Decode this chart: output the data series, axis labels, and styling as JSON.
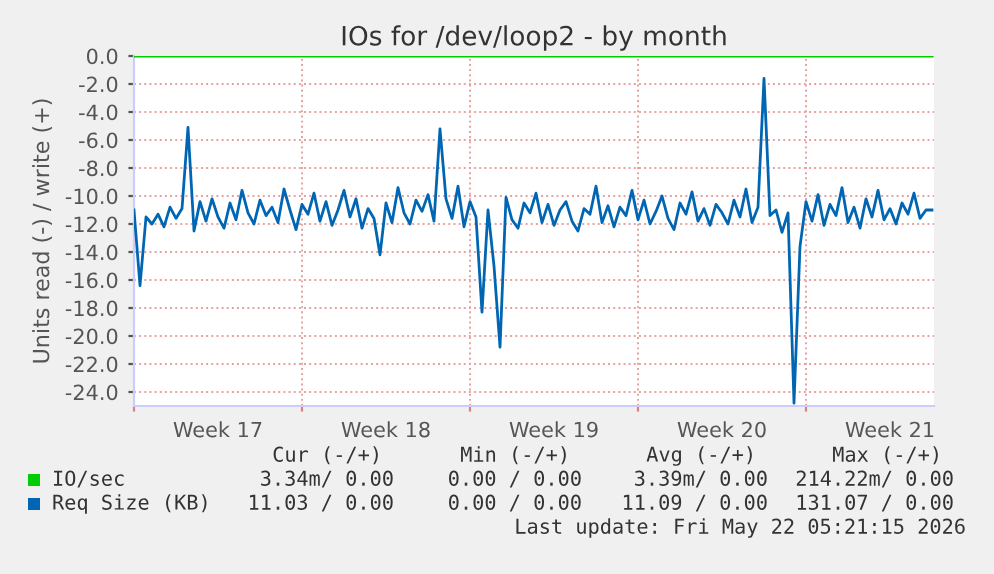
{
  "chart_data": {
    "type": "line",
    "title": "IOs for /dev/loop2 - by month",
    "ylabel": "Units read (-) / write (+)",
    "xlim": [
      "2026-04-20T00:00",
      "2026-05-23T08:00"
    ],
    "ylim": [
      -25,
      0
    ],
    "xticks": [
      {
        "value": "2026-04-20T00:00",
        "label": null
      },
      {
        "value": "2026-04-23T12:00",
        "label": "Week 17"
      },
      {
        "value": "2026-04-27T00:00",
        "label": null
      },
      {
        "value": "2026-04-30T12:00",
        "label": "Week 18"
      },
      {
        "value": "2026-05-04T00:00",
        "label": null
      },
      {
        "value": "2026-05-07T12:00",
        "label": "Week 19"
      },
      {
        "value": "2026-05-11T00:00",
        "label": null
      },
      {
        "value": "2026-05-14T12:00",
        "label": "Week 20"
      },
      {
        "value": "2026-05-18T00:00",
        "label": null
      },
      {
        "value": "2026-05-21T12:00",
        "label": "Week 21"
      }
    ],
    "yticks": [
      {
        "value": 0,
        "label": "0.0"
      },
      {
        "value": -2,
        "label": "-2.0"
      },
      {
        "value": -4,
        "label": "-4.0"
      },
      {
        "value": -6,
        "label": "-6.0"
      },
      {
        "value": -8,
        "label": "-8.0"
      },
      {
        "value": -10,
        "label": "-10.0"
      },
      {
        "value": -12,
        "label": "-12.0"
      },
      {
        "value": -14,
        "label": "-14.0"
      },
      {
        "value": -16,
        "label": "-16.0"
      },
      {
        "value": -18,
        "label": "-18.0"
      },
      {
        "value": -20,
        "label": "-20.0"
      },
      {
        "value": -22,
        "label": "-22.0"
      },
      {
        "value": -24,
        "label": "-24.0"
      }
    ],
    "grid": true,
    "legend": "bottom",
    "series": [
      {
        "name": "IO/sec",
        "color": "#00cc00",
        "x": [
          "2026-04-20T00:00",
          "2026-05-23T06:00"
        ],
        "values": [
          0,
          0
        ]
      },
      {
        "name": "Req Size (KB)",
        "color": "#0066b3",
        "x": [
          "2026-04-20T00:00",
          "2026-04-20T06:00",
          "2026-04-20T12:00",
          "2026-04-20T18:00",
          "2026-04-21T00:00",
          "2026-04-21T06:00",
          "2026-04-21T12:00",
          "2026-04-21T18:00",
          "2026-04-22T00:00",
          "2026-04-22T06:00",
          "2026-04-22T12:00",
          "2026-04-22T18:00",
          "2026-04-23T00:00",
          "2026-04-23T06:00",
          "2026-04-23T12:00",
          "2026-04-23T18:00",
          "2026-04-24T00:00",
          "2026-04-24T06:00",
          "2026-04-24T12:00",
          "2026-04-24T18:00",
          "2026-04-25T00:00",
          "2026-04-25T06:00",
          "2026-04-25T12:00",
          "2026-04-25T18:00",
          "2026-04-26T00:00",
          "2026-04-26T06:00",
          "2026-04-26T12:00",
          "2026-04-26T18:00",
          "2026-04-27T00:00",
          "2026-04-27T06:00",
          "2026-04-27T12:00",
          "2026-04-27T18:00",
          "2026-04-28T00:00",
          "2026-04-28T06:00",
          "2026-04-28T12:00",
          "2026-04-28T18:00",
          "2026-04-29T00:00",
          "2026-04-29T06:00",
          "2026-04-29T12:00",
          "2026-04-29T18:00",
          "2026-04-30T00:00",
          "2026-04-30T06:00",
          "2026-04-30T12:00",
          "2026-04-30T18:00",
          "2026-05-01T00:00",
          "2026-05-01T06:00",
          "2026-05-01T12:00",
          "2026-05-01T18:00",
          "2026-05-02T00:00",
          "2026-05-02T06:00",
          "2026-05-02T12:00",
          "2026-05-02T18:00",
          "2026-05-03T00:00",
          "2026-05-03T06:00",
          "2026-05-03T12:00",
          "2026-05-03T18:00",
          "2026-05-04T00:00",
          "2026-05-04T06:00",
          "2026-05-04T12:00",
          "2026-05-04T18:00",
          "2026-05-05T00:00",
          "2026-05-05T06:00",
          "2026-05-05T12:00",
          "2026-05-05T18:00",
          "2026-05-06T00:00",
          "2026-05-06T06:00",
          "2026-05-06T12:00",
          "2026-05-06T18:00",
          "2026-05-07T00:00",
          "2026-05-07T06:00",
          "2026-05-07T12:00",
          "2026-05-07T18:00",
          "2026-05-08T00:00",
          "2026-05-08T06:00",
          "2026-05-08T12:00",
          "2026-05-08T18:00",
          "2026-05-09T00:00",
          "2026-05-09T06:00",
          "2026-05-09T12:00",
          "2026-05-09T18:00",
          "2026-05-10T00:00",
          "2026-05-10T06:00",
          "2026-05-10T12:00",
          "2026-05-10T18:00",
          "2026-05-11T00:00",
          "2026-05-11T06:00",
          "2026-05-11T12:00",
          "2026-05-11T18:00",
          "2026-05-12T00:00",
          "2026-05-12T06:00",
          "2026-05-12T12:00",
          "2026-05-12T18:00",
          "2026-05-13T00:00",
          "2026-05-13T06:00",
          "2026-05-13T12:00",
          "2026-05-13T18:00",
          "2026-05-14T00:00",
          "2026-05-14T06:00",
          "2026-05-14T12:00",
          "2026-05-14T18:00",
          "2026-05-15T00:00",
          "2026-05-15T06:00",
          "2026-05-15T12:00",
          "2026-05-15T18:00",
          "2026-05-16T00:00",
          "2026-05-16T06:00",
          "2026-05-16T12:00",
          "2026-05-16T18:00",
          "2026-05-17T00:00",
          "2026-05-17T06:00",
          "2026-05-17T12:00",
          "2026-05-17T18:00",
          "2026-05-18T00:00",
          "2026-05-18T06:00",
          "2026-05-18T12:00",
          "2026-05-18T18:00",
          "2026-05-19T00:00",
          "2026-05-19T06:00",
          "2026-05-19T12:00",
          "2026-05-19T18:00",
          "2026-05-20T00:00",
          "2026-05-20T06:00",
          "2026-05-20T12:00",
          "2026-05-20T18:00",
          "2026-05-21T00:00",
          "2026-05-21T06:00",
          "2026-05-21T12:00",
          "2026-05-21T18:00",
          "2026-05-22T00:00",
          "2026-05-22T06:00",
          "2026-05-22T12:00",
          "2026-05-22T18:00",
          "2026-05-23T00:00",
          "2026-05-23T06:00"
        ],
        "values": [
          -11.0,
          -16.4,
          -11.5,
          -12.0,
          -11.3,
          -12.2,
          -10.8,
          -11.6,
          -10.9,
          -5.1,
          -12.5,
          -10.4,
          -11.8,
          -10.2,
          -11.5,
          -12.3,
          -10.5,
          -11.7,
          -9.6,
          -11.2,
          -12.0,
          -10.3,
          -11.4,
          -10.8,
          -11.9,
          -9.5,
          -11.0,
          -12.4,
          -10.6,
          -11.3,
          -9.8,
          -11.8,
          -10.4,
          -12.1,
          -11.0,
          -9.6,
          -11.5,
          -10.2,
          -12.3,
          -10.9,
          -11.6,
          -14.2,
          -10.5,
          -11.9,
          -9.4,
          -11.2,
          -12.0,
          -10.3,
          -11.1,
          -9.9,
          -11.8,
          -5.2,
          -10.2,
          -11.6,
          -9.3,
          -12.2,
          -10.4,
          -11.5,
          -18.3,
          -11.0,
          -15.0,
          -20.8,
          -10.1,
          -11.7,
          -12.3,
          -10.5,
          -11.2,
          -9.8,
          -11.9,
          -10.6,
          -12.1,
          -11.0,
          -10.4,
          -11.8,
          -12.5,
          -10.9,
          -11.3,
          -9.3,
          -11.9,
          -10.7,
          -12.2,
          -10.8,
          -11.4,
          -9.6,
          -11.7,
          -10.3,
          -12.0,
          -11.1,
          -10.0,
          -11.6,
          -12.4,
          -10.5,
          -11.3,
          -9.7,
          -11.8,
          -10.9,
          -12.1,
          -10.6,
          -11.2,
          -12.0,
          -10.3,
          -11.5,
          -9.5,
          -11.9,
          -10.8,
          -1.6,
          -11.4,
          -11.0,
          -12.6,
          -11.2,
          -24.8,
          -13.6,
          -10.4,
          -11.8,
          -9.9,
          -12.1,
          -10.6,
          -11.4,
          -9.4,
          -11.9,
          -10.8,
          -12.3,
          -10.2,
          -11.5,
          -9.6,
          -11.7,
          -10.9,
          -12.0,
          -10.5,
          -11.3,
          -9.8,
          -11.6,
          -11.0,
          -11.0
        ]
      }
    ],
    "annotations": [
      "Cur (-/+)",
      "Min (-/+)",
      "Avg (-/+)",
      "Max (-/+)",
      "3.34m/ 0.00",
      "0.00 / 0.00",
      "3.39m/ 0.00",
      "214.22m/ 0.00",
      "11.03 / 0.00",
      "0.00 / 0.00",
      "11.09 / 0.00",
      "131.07 / 0.00",
      "Last update: Fri May 22 05:21:15 2026"
    ]
  }
}
